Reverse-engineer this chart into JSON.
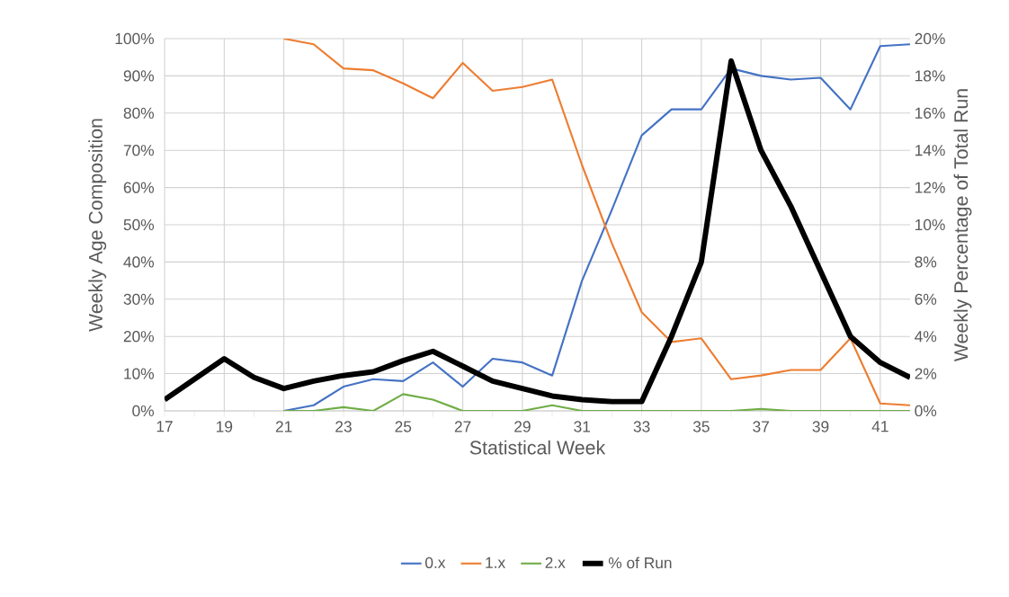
{
  "chart_data": {
    "type": "line",
    "xlabel": "Statistical Week",
    "ylabel": "Weekly Age Composition",
    "y2label": "Weekly Percentage of Total Run",
    "x": [
      17,
      18,
      19,
      20,
      21,
      22,
      23,
      24,
      25,
      26,
      27,
      28,
      29,
      30,
      31,
      32,
      33,
      34,
      35,
      36,
      37,
      38,
      39,
      40,
      41,
      42
    ],
    "series": [
      {
        "name": "0.x",
        "color": "#4472c4",
        "values": [
          null,
          null,
          null,
          null,
          0,
          1.5,
          6.5,
          8.5,
          8,
          13,
          6.5,
          14,
          13,
          9.5,
          35,
          54,
          74,
          81,
          81,
          92,
          90,
          89,
          89.5,
          81,
          98,
          98.5
        ]
      },
      {
        "name": "1.x",
        "color": "#ed7d31",
        "values": [
          null,
          null,
          null,
          null,
          100,
          98.5,
          92,
          91.5,
          88,
          84,
          93.5,
          86,
          87,
          89,
          66,
          45,
          26.5,
          18.5,
          19.5,
          8.5,
          9.5,
          11,
          11,
          19.5,
          2,
          1.5
        ]
      },
      {
        "name": "2.x",
        "color": "#70ad47",
        "values": [
          null,
          null,
          null,
          null,
          0,
          0,
          1,
          0,
          4.5,
          3,
          0,
          0,
          0,
          1.5,
          0,
          0,
          0,
          0,
          0,
          0,
          0.5,
          0,
          0,
          0,
          0,
          0
        ]
      },
      {
        "name": "% of Run",
        "color": "#000000",
        "axis": "y2",
        "values": [
          0.6,
          1.7,
          2.8,
          1.8,
          1.2,
          1.6,
          1.9,
          2.1,
          2.7,
          3.2,
          2.4,
          1.6,
          1.2,
          0.8,
          0.6,
          0.5,
          0.5,
          4,
          8,
          18.8,
          14,
          11,
          7.5,
          4,
          2.6,
          1.8
        ]
      }
    ],
    "xlim": [
      17,
      42
    ],
    "xticks": [
      17,
      19,
      21,
      23,
      25,
      27,
      29,
      31,
      33,
      35,
      37,
      39,
      41
    ],
    "ylim": [
      0,
      100
    ],
    "yticks": [
      {
        "value": 0,
        "label": "0%"
      },
      {
        "value": 10,
        "label": "10%"
      },
      {
        "value": 20,
        "label": "20%"
      },
      {
        "value": 30,
        "label": "30%"
      },
      {
        "value": 40,
        "label": "40%"
      },
      {
        "value": 50,
        "label": "50%"
      },
      {
        "value": 60,
        "label": "60%"
      },
      {
        "value": 70,
        "label": "70%"
      },
      {
        "value": 80,
        "label": "80%"
      },
      {
        "value": 90,
        "label": "90%"
      },
      {
        "value": 100,
        "label": "100%"
      }
    ],
    "y2lim": [
      0,
      20
    ],
    "y2ticks": [
      {
        "value": 0,
        "label": "0%"
      },
      {
        "value": 2,
        "label": "2%"
      },
      {
        "value": 4,
        "label": "4%"
      },
      {
        "value": 6,
        "label": "6%"
      },
      {
        "value": 8,
        "label": "8%"
      },
      {
        "value": 10,
        "label": "10%"
      },
      {
        "value": 12,
        "label": "12%"
      },
      {
        "value": 14,
        "label": "14%"
      },
      {
        "value": 16,
        "label": "16%"
      },
      {
        "value": 18,
        "label": "18%"
      },
      {
        "value": 20,
        "label": "20%"
      }
    ],
    "grid": true,
    "legend": "bottom",
    "marker": "none",
    "line_style": "solid"
  }
}
